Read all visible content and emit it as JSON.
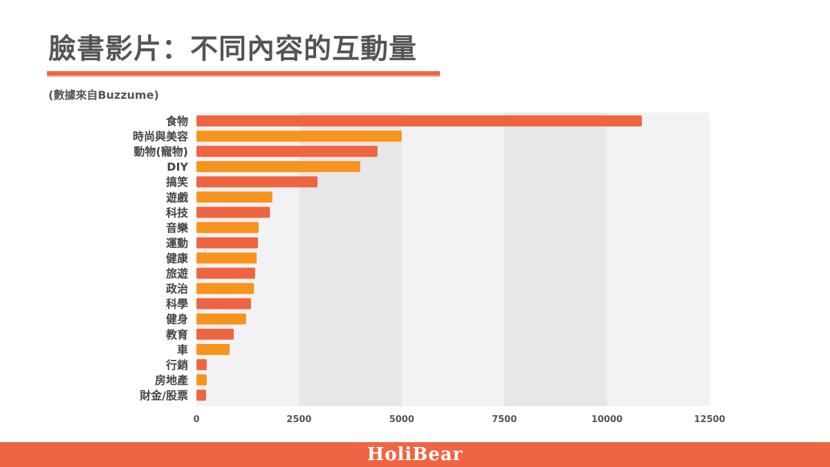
{
  "title": "臉書影片：不同內容的互動量",
  "subtitle": "(數據來自Buzzume)",
  "footer": {
    "logo": "HoliBear"
  },
  "chart_data": {
    "type": "bar",
    "orientation": "horizontal",
    "categories": [
      "食物",
      "時尚與美容",
      "動物(寵物)",
      "DIY",
      "搞笑",
      "遊戲",
      "科技",
      "音樂",
      "運動",
      "健康",
      "旅遊",
      "政治",
      "科學",
      "健身",
      "教育",
      "車",
      "行銷",
      "房地產",
      "財金/股票"
    ],
    "values": [
      10850,
      5000,
      4410,
      3990,
      2950,
      1850,
      1790,
      1515,
      1500,
      1465,
      1430,
      1400,
      1330,
      1210,
      910,
      810,
      250,
      250,
      235
    ],
    "xlim": [
      0,
      12500
    ],
    "xticks": [
      "0",
      "2500",
      "5000",
      "7500",
      "10000",
      "12500"
    ],
    "colors": [
      "#ef6542",
      "#f7941d"
    ],
    "title": "",
    "xlabel": "",
    "ylabel": ""
  }
}
